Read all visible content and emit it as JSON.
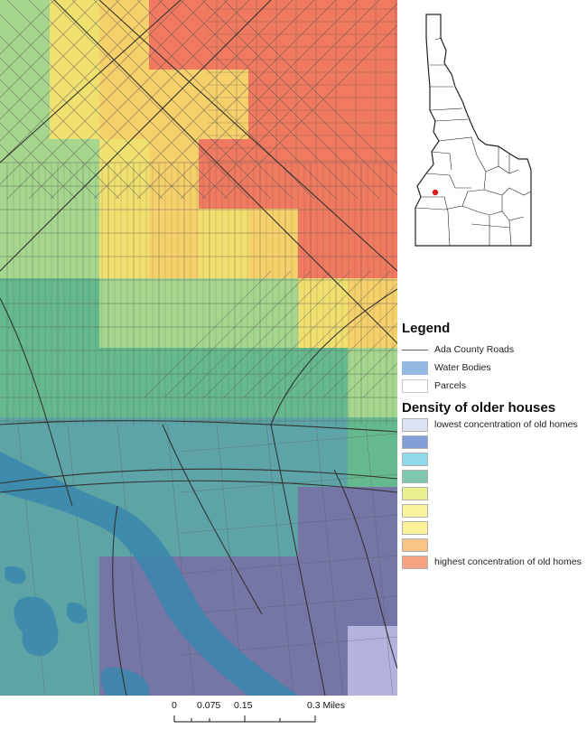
{
  "map": {
    "rows": 10,
    "cols": 8,
    "density_grid": [
      [
        2,
        3,
        4,
        5,
        5,
        5,
        5,
        5
      ],
      [
        2,
        3,
        4,
        4,
        4,
        5,
        5,
        5
      ],
      [
        2,
        2,
        3,
        4,
        5,
        5,
        5,
        5
      ],
      [
        2,
        2,
        3,
        4,
        3,
        4,
        5,
        5
      ],
      [
        1,
        1,
        2,
        2,
        2,
        2,
        3,
        4
      ],
      [
        1,
        1,
        1,
        1,
        1,
        1,
        1,
        2
      ],
      [
        0,
        0,
        0,
        0,
        0,
        0,
        0,
        1
      ],
      [
        0,
        0,
        0,
        0,
        0,
        0,
        -1,
        -1
      ],
      [
        0,
        0,
        -1,
        -1,
        -1,
        -1,
        -1,
        -1
      ],
      [
        0,
        0,
        -1,
        -1,
        -1,
        -1,
        -1,
        -2
      ]
    ],
    "density_colors": {
      "-2": "#b3b3dd",
      "-1": "#7575a6",
      "0": "#5ea4a6",
      "1": "#66b98e",
      "2": "#a6d68e",
      "3": "#f0e070",
      "4": "#f6d06a",
      "5": "#f07a60"
    },
    "river_color": "#3a87ac",
    "road_color": "#333333",
    "parcel_color": "#555555"
  },
  "inset": {
    "state_fill": "#ffffff",
    "border_color": "#222222",
    "marker_color": "#e31a1c"
  },
  "legend": {
    "title": "Legend",
    "items": [
      {
        "label": "Ada County Roads",
        "kind": "line",
        "color": "#666666"
      },
      {
        "label": "Water Bodies",
        "kind": "fill",
        "color": "#93b9e0"
      },
      {
        "label": "Parcels",
        "kind": "outline",
        "color": "#ffffff"
      }
    ],
    "density_title": "Density of older houses",
    "density_items": [
      {
        "label": "lowest concentration of old homes",
        "color": "#dde3f2"
      },
      {
        "label": "",
        "color": "#7f9fd6"
      },
      {
        "label": "",
        "color": "#8fdaea"
      },
      {
        "label": "",
        "color": "#7fc7ad"
      },
      {
        "label": "",
        "color": "#e7ef8e"
      },
      {
        "label": "",
        "color": "#f8f49c"
      },
      {
        "label": "",
        "color": "#fbf29a"
      },
      {
        "label": "",
        "color": "#f8c485"
      },
      {
        "label": "highest concentration of old homes",
        "color": "#f5a383"
      }
    ]
  },
  "scalebar": {
    "labels": [
      "0",
      "0.075",
      "0.15",
      "0.3 Miles"
    ]
  }
}
